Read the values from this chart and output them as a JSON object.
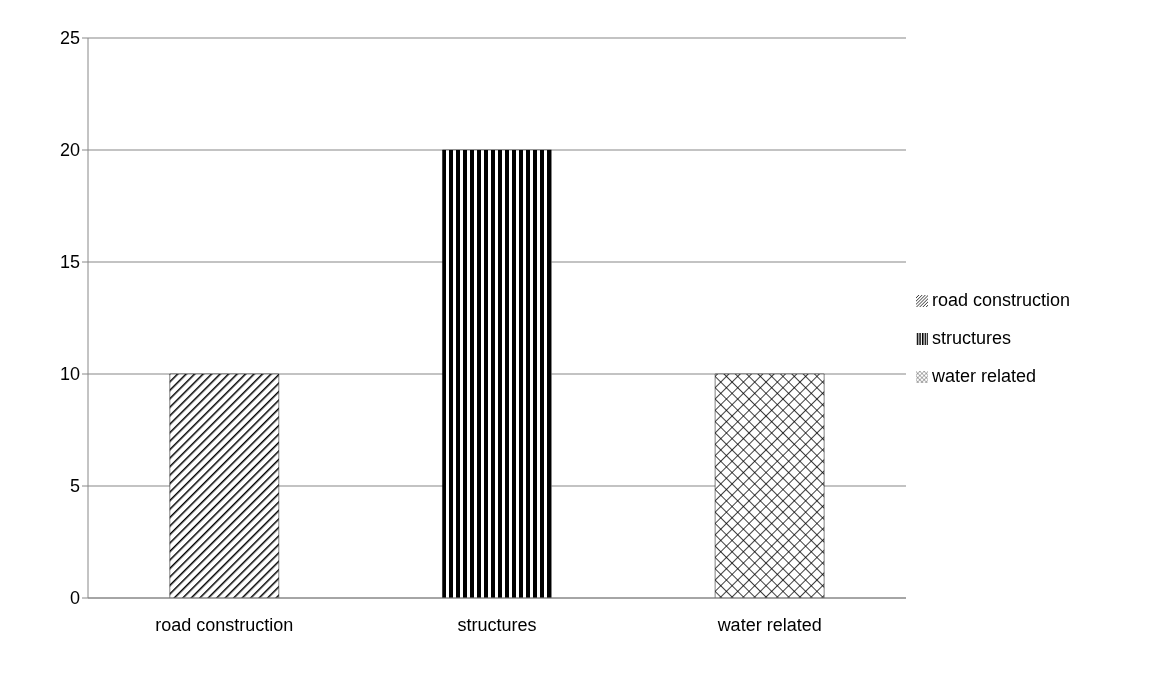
{
  "chart_data": {
    "type": "bar",
    "categories": [
      "road construction",
      "structures",
      "water related"
    ],
    "series": [
      {
        "name": "road construction",
        "color": "#000000",
        "values": [
          10,
          null,
          null
        ]
      },
      {
        "name": "structures",
        "color": "#000000",
        "values": [
          null,
          20,
          null
        ]
      },
      {
        "name": "water related",
        "color": "#000000",
        "values": [
          null,
          null,
          10
        ]
      }
    ],
    "ylim": [
      0,
      25
    ],
    "yticks": [
      0,
      5,
      10,
      15,
      20,
      25
    ],
    "grid": "y",
    "legend": "right"
  }
}
